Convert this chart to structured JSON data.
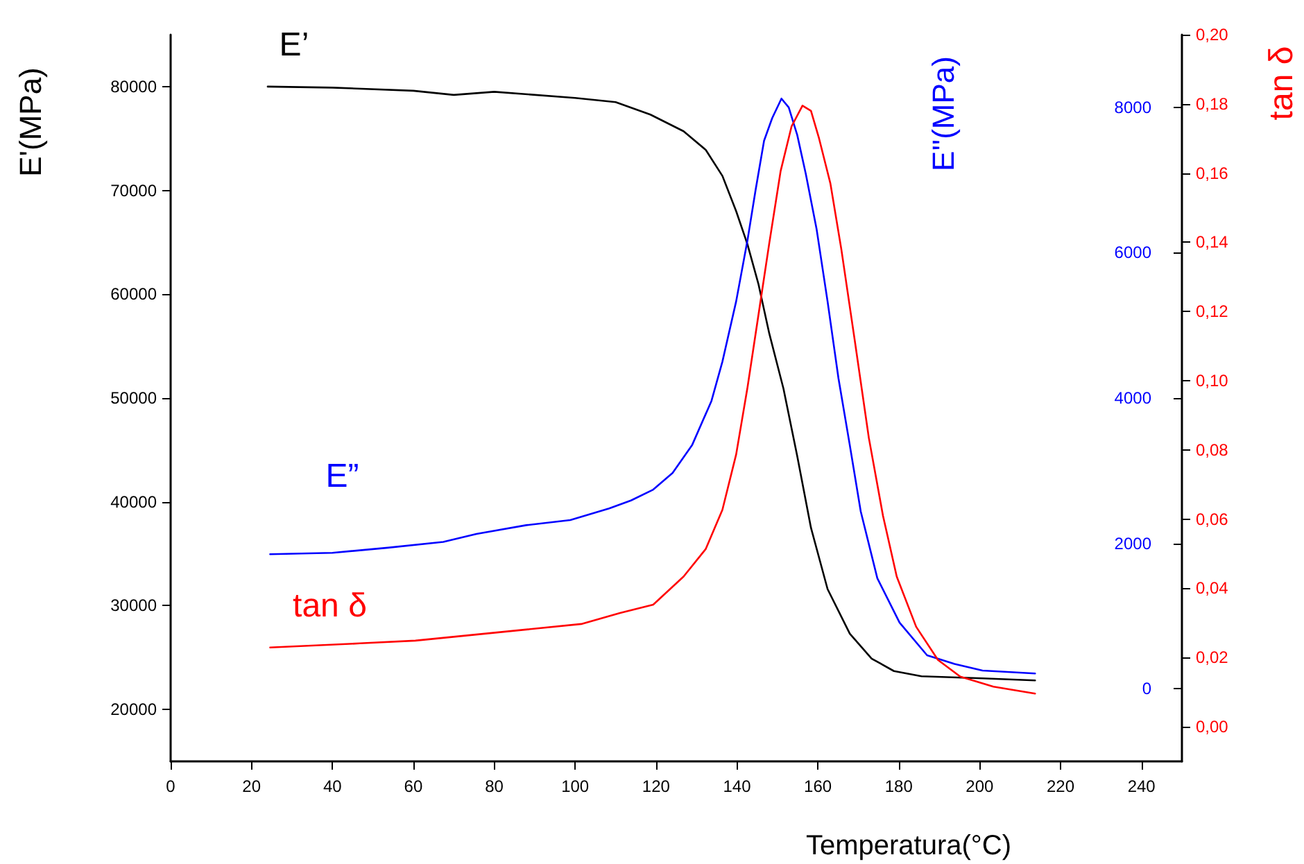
{
  "chart_data": {
    "type": "line",
    "xlabel": "Temperatura(°C)",
    "ylabel": "E'(MPa)",
    "y2label": "E''(MPa)",
    "y3label": "tan δ",
    "xlim": [
      0,
      250
    ],
    "xticks": [
      0,
      20,
      40,
      60,
      80,
      100,
      120,
      140,
      160,
      180,
      200,
      220,
      240
    ],
    "ylim": [
      15000,
      85000
    ],
    "yticks": [
      20000,
      30000,
      40000,
      50000,
      60000,
      70000,
      80000
    ],
    "y2lim": [
      -1000,
      9000
    ],
    "y2ticks": [
      0,
      2000,
      4000,
      6000,
      8000
    ],
    "y3lim": [
      -0.01,
      0.2
    ],
    "y3ticks": [
      {
        "value": 0,
        "label": "0,00"
      },
      {
        "value": 0.02,
        "label": "0,02"
      },
      {
        "value": 0.04,
        "label": "0,04"
      },
      {
        "value": 0.06,
        "label": "0,06"
      },
      {
        "value": 0.08,
        "label": "0,08"
      },
      {
        "value": 0.1,
        "label": "0,10"
      },
      {
        "value": 0.12,
        "label": "0,12"
      },
      {
        "value": 0.14,
        "label": "0,14"
      },
      {
        "value": 0.16,
        "label": "0,16"
      },
      {
        "value": 0.18,
        "label": "0,18"
      },
      {
        "value": 0.2,
        "label": "0,20"
      }
    ],
    "grid": false,
    "legend": false,
    "marker": "none",
    "line_style": "solid",
    "series": [
      {
        "name": "E’",
        "color": "#000000",
        "x": [
          24,
          40,
          60,
          70,
          80,
          100,
          110,
          118.6,
          126.8,
          132.3,
          136.4,
          139.8,
          142.6,
          145.3,
          148,
          151.5,
          154.9,
          158.3,
          162.4,
          167.9,
          173.3,
          178.8,
          185.6,
          200.7,
          213.7
        ],
        "values": [
          80000,
          79900,
          79600,
          79200,
          79500,
          78900,
          78500,
          77300,
          75700,
          73900,
          71400,
          68000,
          64800,
          61000,
          56200,
          50900,
          44400,
          37500,
          31600,
          27300,
          24900,
          23700,
          23200,
          23000,
          22800
        ]
      },
      {
        "name": "E”",
        "color": "#0000ff",
        "axis": "y2",
        "x": [
          24.6,
          40,
          53.7,
          67.4,
          75.6,
          87.9,
          98.8,
          108.4,
          113.8,
          119.3,
          124.1,
          128.9,
          133.7,
          136.4,
          139.8,
          142.6,
          144.6,
          146.7,
          148.7,
          151,
          152.8,
          154.9,
          157,
          159.7,
          162.4,
          165.1,
          167.9,
          170.6,
          174.7,
          180.2,
          187,
          193.8,
          200.7,
          213.7
        ],
        "values": [
          1850,
          1870,
          1940,
          2020,
          2130,
          2250,
          2320,
          2480,
          2590,
          2740,
          2970,
          3350,
          3960,
          4500,
          5330,
          6170,
          6860,
          7540,
          7850,
          8120,
          8000,
          7620,
          7090,
          6320,
          5330,
          4270,
          3350,
          2440,
          1520,
          910,
          460,
          340,
          250,
          210
        ]
      },
      {
        "name": "tan δ",
        "color": "#ff0000",
        "axis": "y3",
        "x": [
          24.6,
          46.8,
          60.5,
          74.2,
          87.9,
          101.5,
          111.1,
          119.3,
          126.8,
          132.3,
          136.4,
          139.8,
          142.6,
          145.3,
          148,
          150.8,
          153.5,
          156.2,
          158.3,
          160.3,
          163.1,
          165.8,
          169.2,
          172.6,
          176.1,
          179.5,
          184.3,
          189.7,
          195.2,
          203.4,
          213.7
        ],
        "values": [
          0.0229,
          0.0241,
          0.0249,
          0.0265,
          0.0281,
          0.0297,
          0.0329,
          0.0353,
          0.0434,
          0.0514,
          0.0627,
          0.0787,
          0.098,
          0.1189,
          0.1398,
          0.1606,
          0.1735,
          0.1795,
          0.178,
          0.17,
          0.157,
          0.138,
          0.111,
          0.0835,
          0.061,
          0.0434,
          0.0289,
          0.0193,
          0.0145,
          0.0116,
          0.0096
        ]
      }
    ]
  }
}
